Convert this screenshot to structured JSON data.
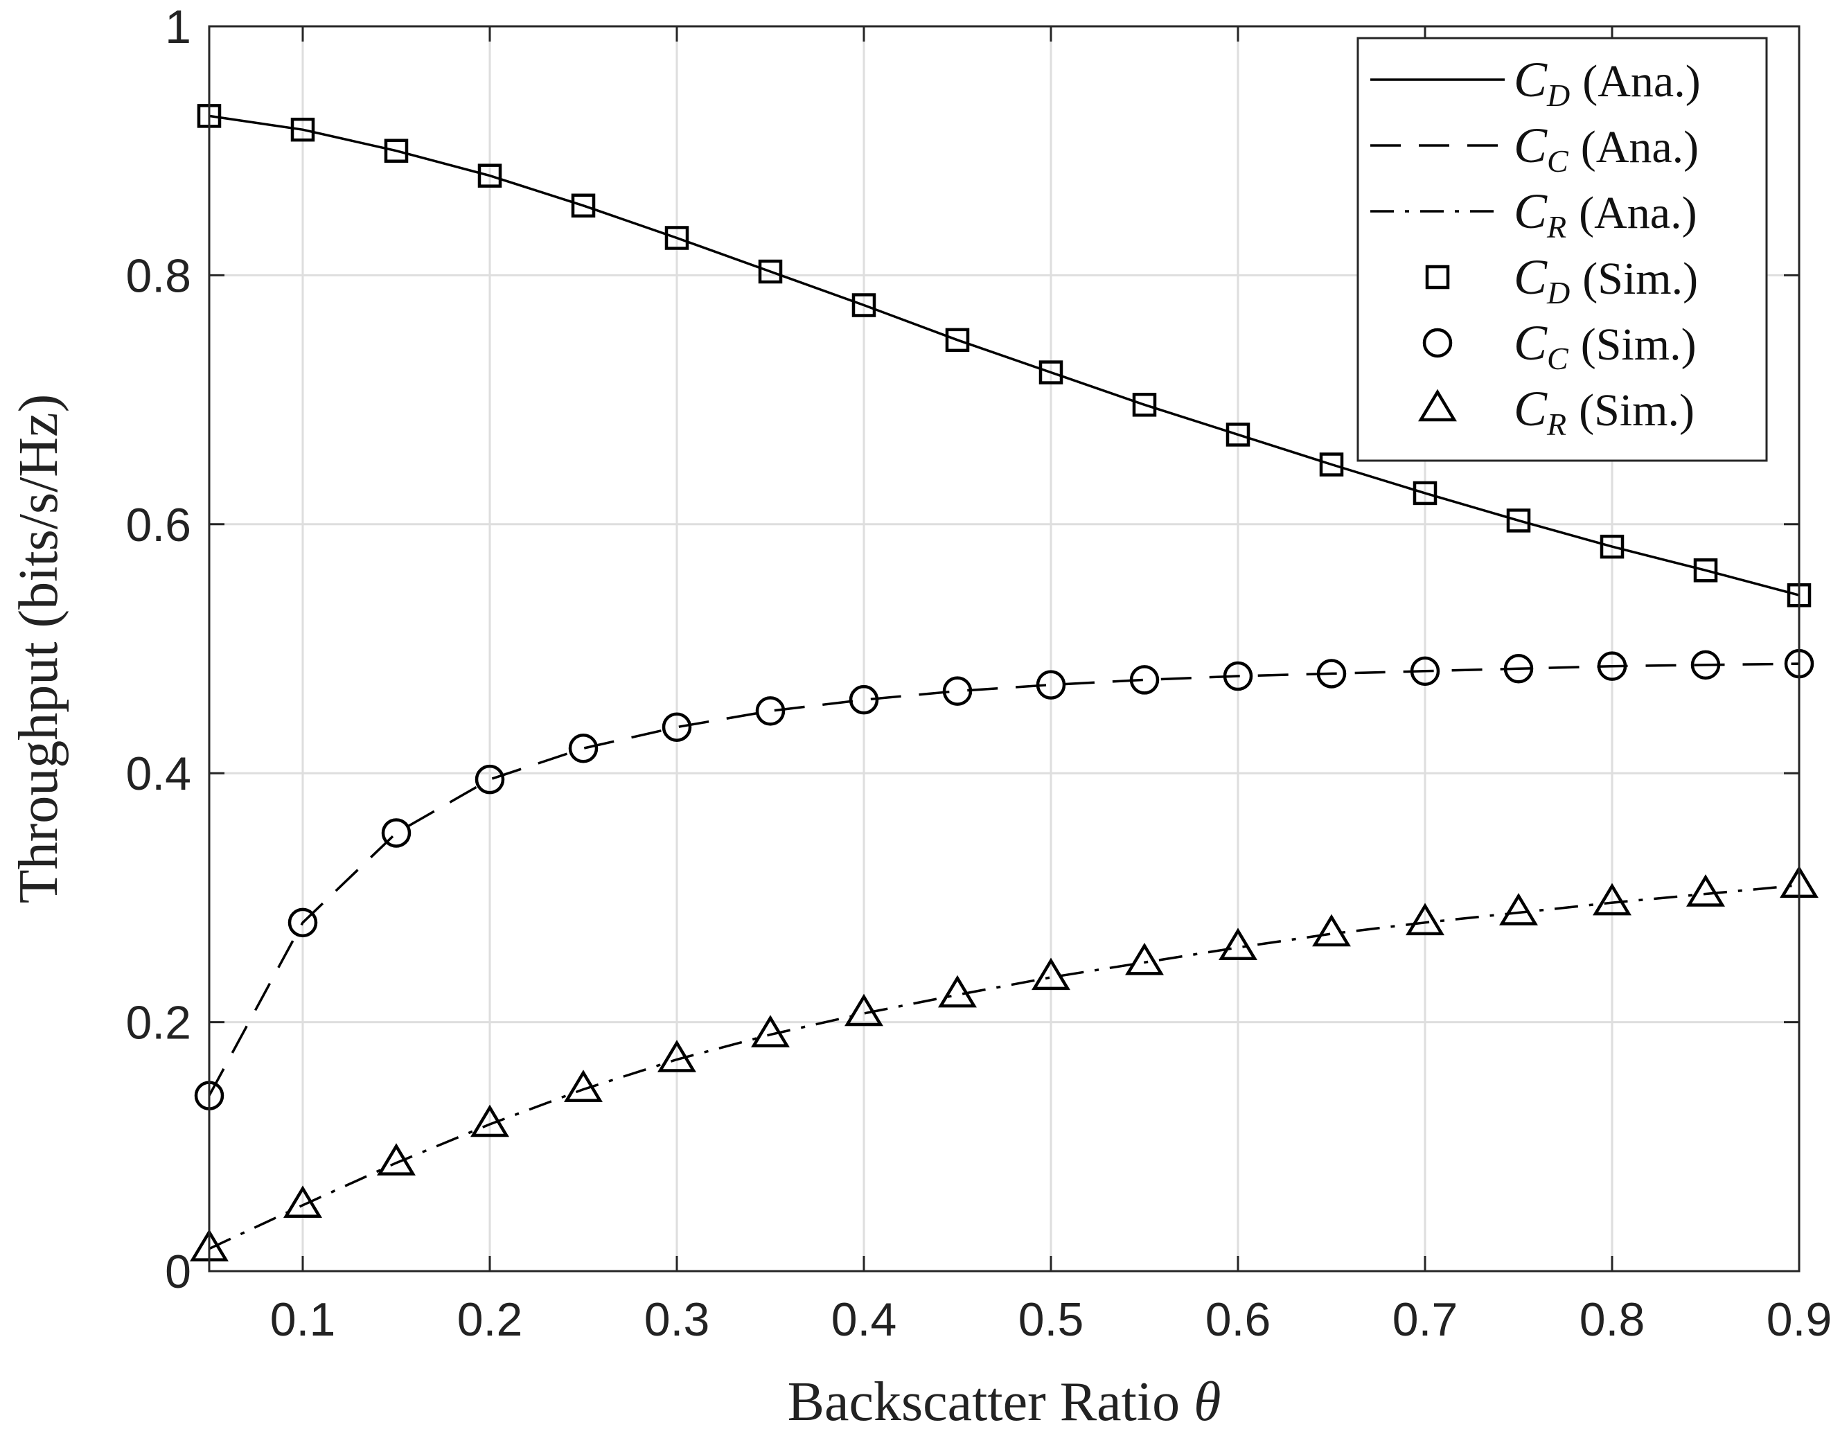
{
  "chart_data": {
    "type": "line",
    "title": "",
    "xlabel": "Backscatter Ratio",
    "xlabel_symbol": "θ",
    "ylabel": "Throughput (bits/s/Hz)",
    "xlim": [
      0.05,
      0.9
    ],
    "ylim": [
      0,
      1
    ],
    "xticks": [
      0.1,
      0.2,
      0.3,
      0.4,
      0.5,
      0.6,
      0.7,
      0.8,
      0.9
    ],
    "xtick_labels": [
      "0.1",
      "0.2",
      "0.3",
      "0.4",
      "0.5",
      "0.6",
      "0.7",
      "0.8",
      "0.9"
    ],
    "yticks": [
      0,
      0.2,
      0.4,
      0.6,
      0.8,
      1
    ],
    "ytick_labels": [
      "0",
      "0.2",
      "0.4",
      "0.6",
      "0.8",
      "1"
    ],
    "grid": true,
    "legend_position": "top-right",
    "x": [
      0.05,
      0.1,
      0.15,
      0.2,
      0.25,
      0.3,
      0.35,
      0.4,
      0.45,
      0.5,
      0.55,
      0.6,
      0.65,
      0.7,
      0.75,
      0.8,
      0.85,
      0.9
    ],
    "series": [
      {
        "name": "C_D (Ana.)",
        "legend_symbol": "C",
        "legend_sub": "D",
        "legend_suffix": "(Ana.)",
        "style": "solid",
        "values": [
          0.928,
          0.917,
          0.9,
          0.88,
          0.856,
          0.83,
          0.803,
          0.776,
          0.748,
          0.722,
          0.696,
          0.672,
          0.648,
          0.625,
          0.603,
          0.582,
          0.563,
          0.543
        ]
      },
      {
        "name": "C_C (Ana.)",
        "legend_symbol": "C",
        "legend_sub": "C",
        "legend_suffix": "(Ana.)",
        "style": "dashed",
        "values": [
          0.141,
          0.28,
          0.352,
          0.395,
          0.42,
          0.437,
          0.45,
          0.459,
          0.466,
          0.471,
          0.475,
          0.478,
          0.48,
          0.482,
          0.484,
          0.486,
          0.487,
          0.488
        ]
      },
      {
        "name": "C_R (Ana.)",
        "legend_symbol": "C",
        "legend_sub": "R",
        "legend_suffix": "(Ana.)",
        "style": "dashdot",
        "values": [
          0.018,
          0.053,
          0.087,
          0.118,
          0.146,
          0.17,
          0.19,
          0.207,
          0.222,
          0.236,
          0.248,
          0.26,
          0.271,
          0.28,
          0.288,
          0.296,
          0.303,
          0.31
        ]
      },
      {
        "name": "C_D (Sim.)",
        "legend_symbol": "C",
        "legend_sub": "D",
        "legend_suffix": "(Sim.)",
        "marker": "square",
        "values": [
          0.928,
          0.917,
          0.9,
          0.88,
          0.856,
          0.83,
          0.803,
          0.776,
          0.748,
          0.722,
          0.696,
          0.672,
          0.648,
          0.625,
          0.603,
          0.582,
          0.563,
          0.543
        ]
      },
      {
        "name": "C_C (Sim.)",
        "legend_symbol": "C",
        "legend_sub": "C",
        "legend_suffix": "(Sim.)",
        "marker": "circle",
        "values": [
          0.141,
          0.28,
          0.352,
          0.395,
          0.42,
          0.437,
          0.45,
          0.459,
          0.466,
          0.471,
          0.475,
          0.478,
          0.48,
          0.482,
          0.484,
          0.486,
          0.487,
          0.488
        ]
      },
      {
        "name": "C_R (Sim.)",
        "legend_symbol": "C",
        "legend_sub": "R",
        "legend_suffix": "(Sim.)",
        "marker": "triangle",
        "values": [
          0.018,
          0.053,
          0.087,
          0.118,
          0.146,
          0.17,
          0.19,
          0.207,
          0.222,
          0.236,
          0.248,
          0.26,
          0.271,
          0.28,
          0.288,
          0.296,
          0.303,
          0.31
        ]
      }
    ],
    "colors": {
      "line": "#000000",
      "grid": "#dedede",
      "axis": "#262626"
    }
  }
}
